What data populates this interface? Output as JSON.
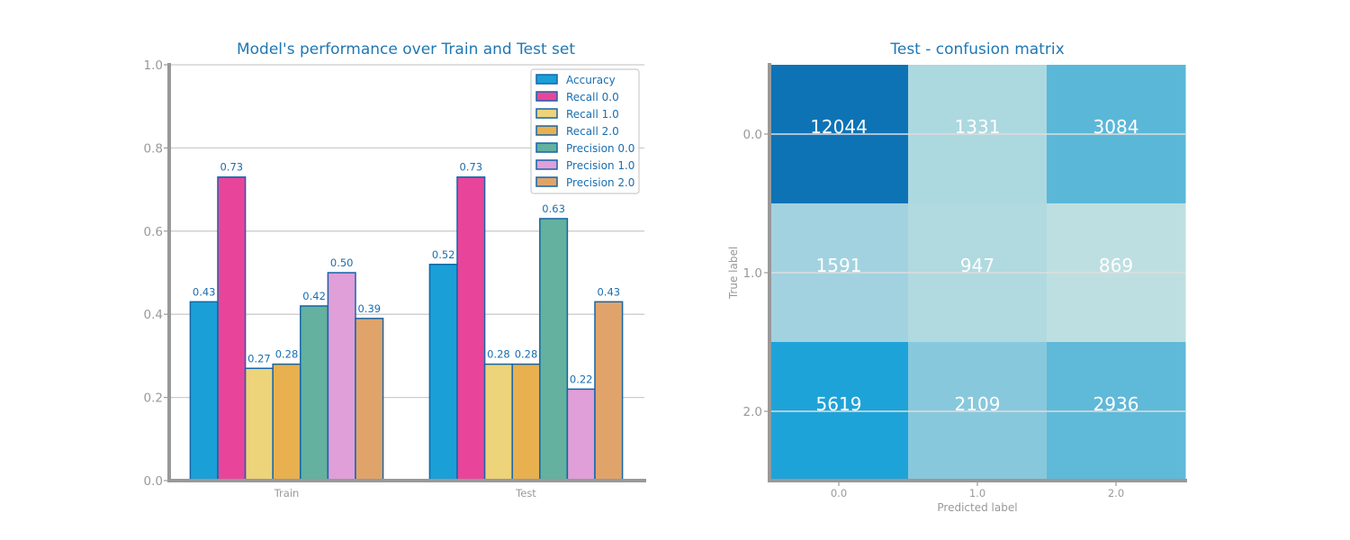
{
  "colors": {
    "title": "#1f77b4",
    "bar_edge": "#1565a8",
    "axis": "#999999",
    "grid": "#cccccc",
    "tick_text": "#999999",
    "value_label": "#1a6eb0",
    "cell_text": "#ffffff",
    "series": [
      "#1a9fd6",
      "#e8459a",
      "#edd37a",
      "#e8b04f",
      "#63b19e",
      "#e09fd8",
      "#e0a46a"
    ]
  },
  "chart_data": [
    {
      "type": "bar",
      "title": "Model's performance over Train and Test set",
      "xlabel": "",
      "ylabel": "",
      "categories": [
        "Train",
        "Test"
      ],
      "ylim": [
        0,
        1
      ],
      "yticks": [
        "0.0",
        "0.2",
        "0.4",
        "0.6",
        "0.8",
        "1.0"
      ],
      "grid": true,
      "legend_position": "top-right",
      "series": [
        {
          "name": "Accuracy",
          "values": [
            0.43,
            0.52
          ],
          "labels": [
            "0.43",
            "0.52"
          ]
        },
        {
          "name": "Recall 0.0",
          "values": [
            0.73,
            0.73
          ],
          "labels": [
            "0.73",
            "0.73"
          ]
        },
        {
          "name": "Recall 1.0",
          "values": [
            0.27,
            0.28
          ],
          "labels": [
            "0.27",
            "0.28"
          ]
        },
        {
          "name": "Recall 2.0",
          "values": [
            0.28,
            0.28
          ],
          "labels": [
            "0.28",
            "0.28"
          ]
        },
        {
          "name": "Precision 0.0",
          "values": [
            0.42,
            0.63
          ],
          "labels": [
            "0.42",
            "0.63"
          ]
        },
        {
          "name": "Precision 1.0",
          "values": [
            0.5,
            0.22
          ],
          "labels": [
            "0.50",
            "0.22"
          ]
        },
        {
          "name": "Precision 2.0",
          "values": [
            0.39,
            0.43
          ],
          "labels": [
            "0.39",
            "0.43"
          ]
        }
      ]
    },
    {
      "type": "heatmap",
      "title": "Test - confusion matrix",
      "xlabel": "Predicted label",
      "ylabel": "True label",
      "x_categories": [
        "0.0",
        "1.0",
        "2.0"
      ],
      "y_categories": [
        "0.0",
        "1.0",
        "2.0"
      ],
      "values": [
        [
          12044,
          1331,
          3084
        ],
        [
          1591,
          947,
          869
        ],
        [
          5619,
          2109,
          2936
        ]
      ],
      "cell_colors": [
        [
          "#0e73b5",
          "#acd8e0",
          "#5ab7d8"
        ],
        [
          "#a2d2e0",
          "#b0dadf",
          "#bedfe1"
        ],
        [
          "#1ea3d8",
          "#88c8dd",
          "#5fb9d8"
        ]
      ]
    }
  ]
}
